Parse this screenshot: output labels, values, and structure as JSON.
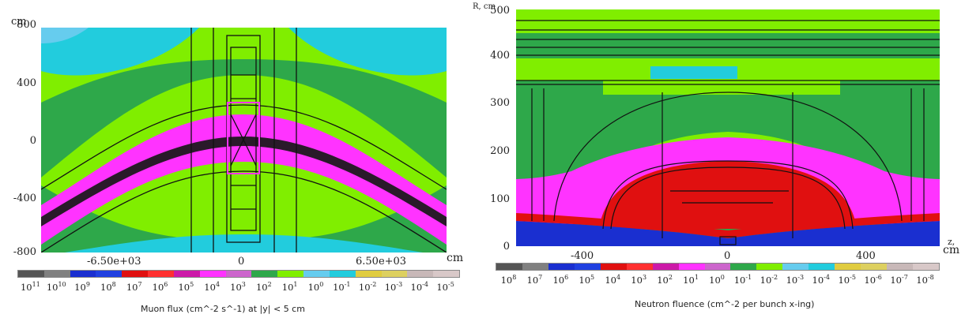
{
  "left": {
    "y_ticks": [
      "400",
      "0",
      "-400",
      "-800"
    ],
    "y_top_label": "800",
    "y_unit": "cm",
    "x_ticks": [
      "-6.50e+03",
      "0",
      "6.50e+03"
    ],
    "x_unit": "cm",
    "colorbar_labels": [
      "10",
      "10",
      "10",
      "10",
      "10",
      "10",
      "10",
      "10",
      "10",
      "10",
      "10",
      "10",
      "10",
      "10",
      "10",
      "10",
      "10"
    ],
    "colorbar_exponents": [
      "11",
      "10",
      "9",
      "8",
      "7",
      "6",
      "5",
      "4",
      "3",
      "2",
      "1",
      "0",
      "-1",
      "-2",
      "-3",
      "-4",
      "-5"
    ],
    "caption": "Muon flux (cm^-2 s^-1) at |y| < 5 cm"
  },
  "right": {
    "y_ticks": [
      "500",
      "400",
      "300",
      "200",
      "100",
      "0"
    ],
    "y_unit": "R, cm",
    "x_ticks": [
      "-400",
      "0",
      "400"
    ],
    "x_unit_top": "z,",
    "x_unit": "cm",
    "colorbar_exponents": [
      "8",
      "7",
      "6",
      "5",
      "4",
      "3",
      "2",
      "1",
      "0",
      "-1",
      "-2",
      "-3",
      "-4",
      "-5",
      "-6",
      "-7",
      "-8"
    ],
    "caption": "Neutron fluence (cm^-2 per bunch x-ing)"
  },
  "palette": [
    "#555555",
    "#808080",
    "#1a2fd0",
    "#2040e0",
    "#e01010",
    "#ff3030",
    "#cc1aa8",
    "#ff33ff",
    "#cc66cc",
    "#2ea84a",
    "#80ee00",
    "#66ccee",
    "#22ccdd",
    "#e0cc40",
    "#ddd060",
    "#c8b8b8",
    "#d8c8c8"
  ],
  "chart_data": [
    {
      "type": "heatmap",
      "title": "",
      "xlabel": "cm",
      "ylabel": "cm",
      "xlim": [
        -13000,
        13000
      ],
      "ylim": [
        -800,
        800
      ],
      "x_ticks": [
        -6500,
        0,
        6500
      ],
      "y_ticks": [
        -800,
        -400,
        0,
        400,
        800
      ],
      "colorbar_levels": [
        "1e11",
        "1e10",
        "1e9",
        "1e8",
        "1e7",
        "1e6",
        "1e5",
        "1e4",
        "1e3",
        "1e2",
        "1e1",
        "1e0",
        "1e-1",
        "1e-2",
        "1e-3",
        "1e-4",
        "1e-5"
      ],
      "colorbar_title": "Muon flux (cm^-2 s^-1) at |y| < 5 cm"
    },
    {
      "type": "heatmap",
      "title": "",
      "xlabel": "z, cm",
      "ylabel": "R, cm",
      "xlim": [
        -620,
        620
      ],
      "ylim": [
        0,
        500
      ],
      "x_ticks": [
        -400,
        0,
        400
      ],
      "y_ticks": [
        0,
        100,
        200,
        300,
        400,
        500
      ],
      "colorbar_levels": [
        "1e8",
        "1e7",
        "1e6",
        "1e5",
        "1e4",
        "1e3",
        "1e2",
        "1e1",
        "1e0",
        "1e-1",
        "1e-2",
        "1e-3",
        "1e-4",
        "1e-5",
        "1e-6",
        "1e-7",
        "1e-8"
      ],
      "colorbar_title": "Neutron fluence (cm^-2 per bunch x-ing)"
    }
  ]
}
